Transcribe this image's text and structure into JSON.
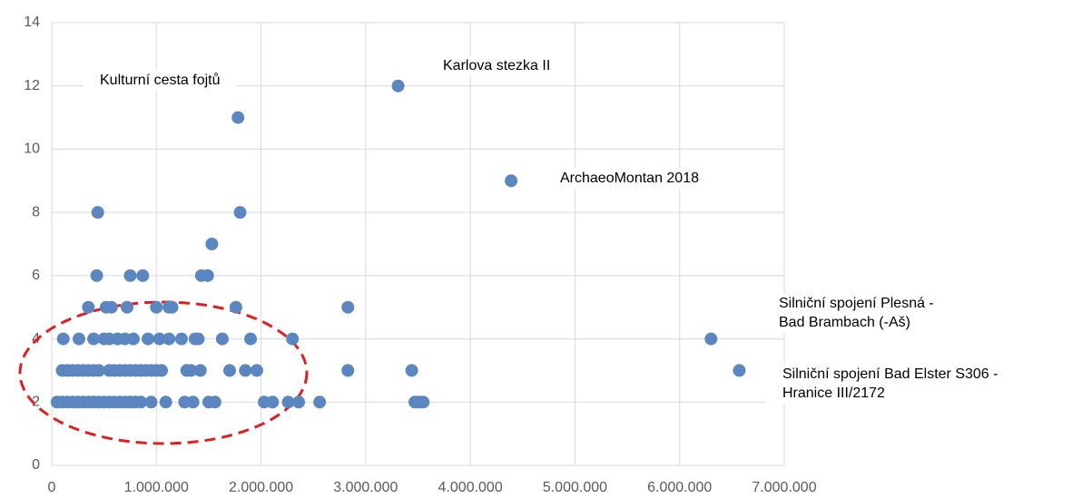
{
  "chart_data": {
    "type": "scatter",
    "xlim": [
      0,
      7000000
    ],
    "ylim": [
      0,
      14
    ],
    "xticks": [
      0,
      {
        "value": 1000000,
        "label": "1.000.000"
      },
      {
        "value": 2000000,
        "label": "2.000.000"
      },
      {
        "value": 3000000,
        "label": "3.000.000"
      },
      {
        "value": 4000000,
        "label": "4.000.000"
      },
      {
        "value": 5000000,
        "label": "5.000.000"
      },
      {
        "value": 6000000,
        "label": "6.000.000"
      },
      {
        "value": 7000000,
        "label": "7.000.000"
      }
    ],
    "yticks": [
      0,
      2,
      4,
      6,
      8,
      10,
      12,
      14
    ],
    "grid": true,
    "series": [
      {
        "color": "#5b86c0",
        "x": [
          50000,
          100000,
          150000,
          200000,
          250000,
          300000,
          350000,
          400000,
          450000,
          500000,
          550000,
          600000,
          650000,
          700000,
          750000,
          800000,
          850000,
          950000,
          1090000,
          1270000,
          1350000,
          1500000,
          1560000,
          2030000,
          2110000,
          2260000,
          2360000,
          2560000,
          3470000,
          3510000,
          3550000,
          100000,
          150000,
          200000,
          250000,
          300000,
          350000,
          400000,
          450000,
          550000,
          600000,
          650000,
          700000,
          750000,
          800000,
          850000,
          900000,
          950000,
          1000000,
          1050000,
          1290000,
          1330000,
          1420000,
          1700000,
          1850000,
          1960000,
          2830000,
          3440000,
          6570000,
          110000,
          260000,
          400000,
          500000,
          550000,
          630000,
          700000,
          780000,
          920000,
          1030000,
          1120000,
          1240000,
          1370000,
          1400000,
          1630000,
          1900000,
          2300000,
          6300000,
          350000,
          520000,
          570000,
          720000,
          1000000,
          1120000,
          1150000,
          1760000,
          2830000,
          430000,
          750000,
          870000,
          1430000,
          1490000,
          1530000,
          440000,
          1800000,
          4390000,
          1780000,
          3310000
        ],
        "values": [
          2,
          2,
          2,
          2,
          2,
          2,
          2,
          2,
          2,
          2,
          2,
          2,
          2,
          2,
          2,
          2,
          2,
          2,
          2,
          2,
          2,
          2,
          2,
          2,
          2,
          2,
          2,
          2,
          2,
          2,
          2,
          3,
          3,
          3,
          3,
          3,
          3,
          3,
          3,
          3,
          3,
          3,
          3,
          3,
          3,
          3,
          3,
          3,
          3,
          3,
          3,
          3,
          3,
          3,
          3,
          3,
          3,
          3,
          3,
          4,
          4,
          4,
          4,
          4,
          4,
          4,
          4,
          4,
          4,
          4,
          4,
          4,
          4,
          4,
          4,
          4,
          4,
          5,
          5,
          5,
          5,
          5,
          5,
          5,
          5,
          5,
          6,
          6,
          6,
          6,
          6,
          7,
          8,
          8,
          9,
          11,
          12
        ]
      }
    ],
    "annotations": [
      [
        "Kulturní cesta fojtů"
      ],
      [
        "Karlova stezka II"
      ],
      [
        "ArchaeoMontan 2018"
      ],
      [
        "Silniční spojení Plesná -",
        "Bad Brambach (-Aš)"
      ],
      [
        "Silniční spojení Bad Elster S306 -",
        "Hranice III/2172"
      ]
    ]
  }
}
